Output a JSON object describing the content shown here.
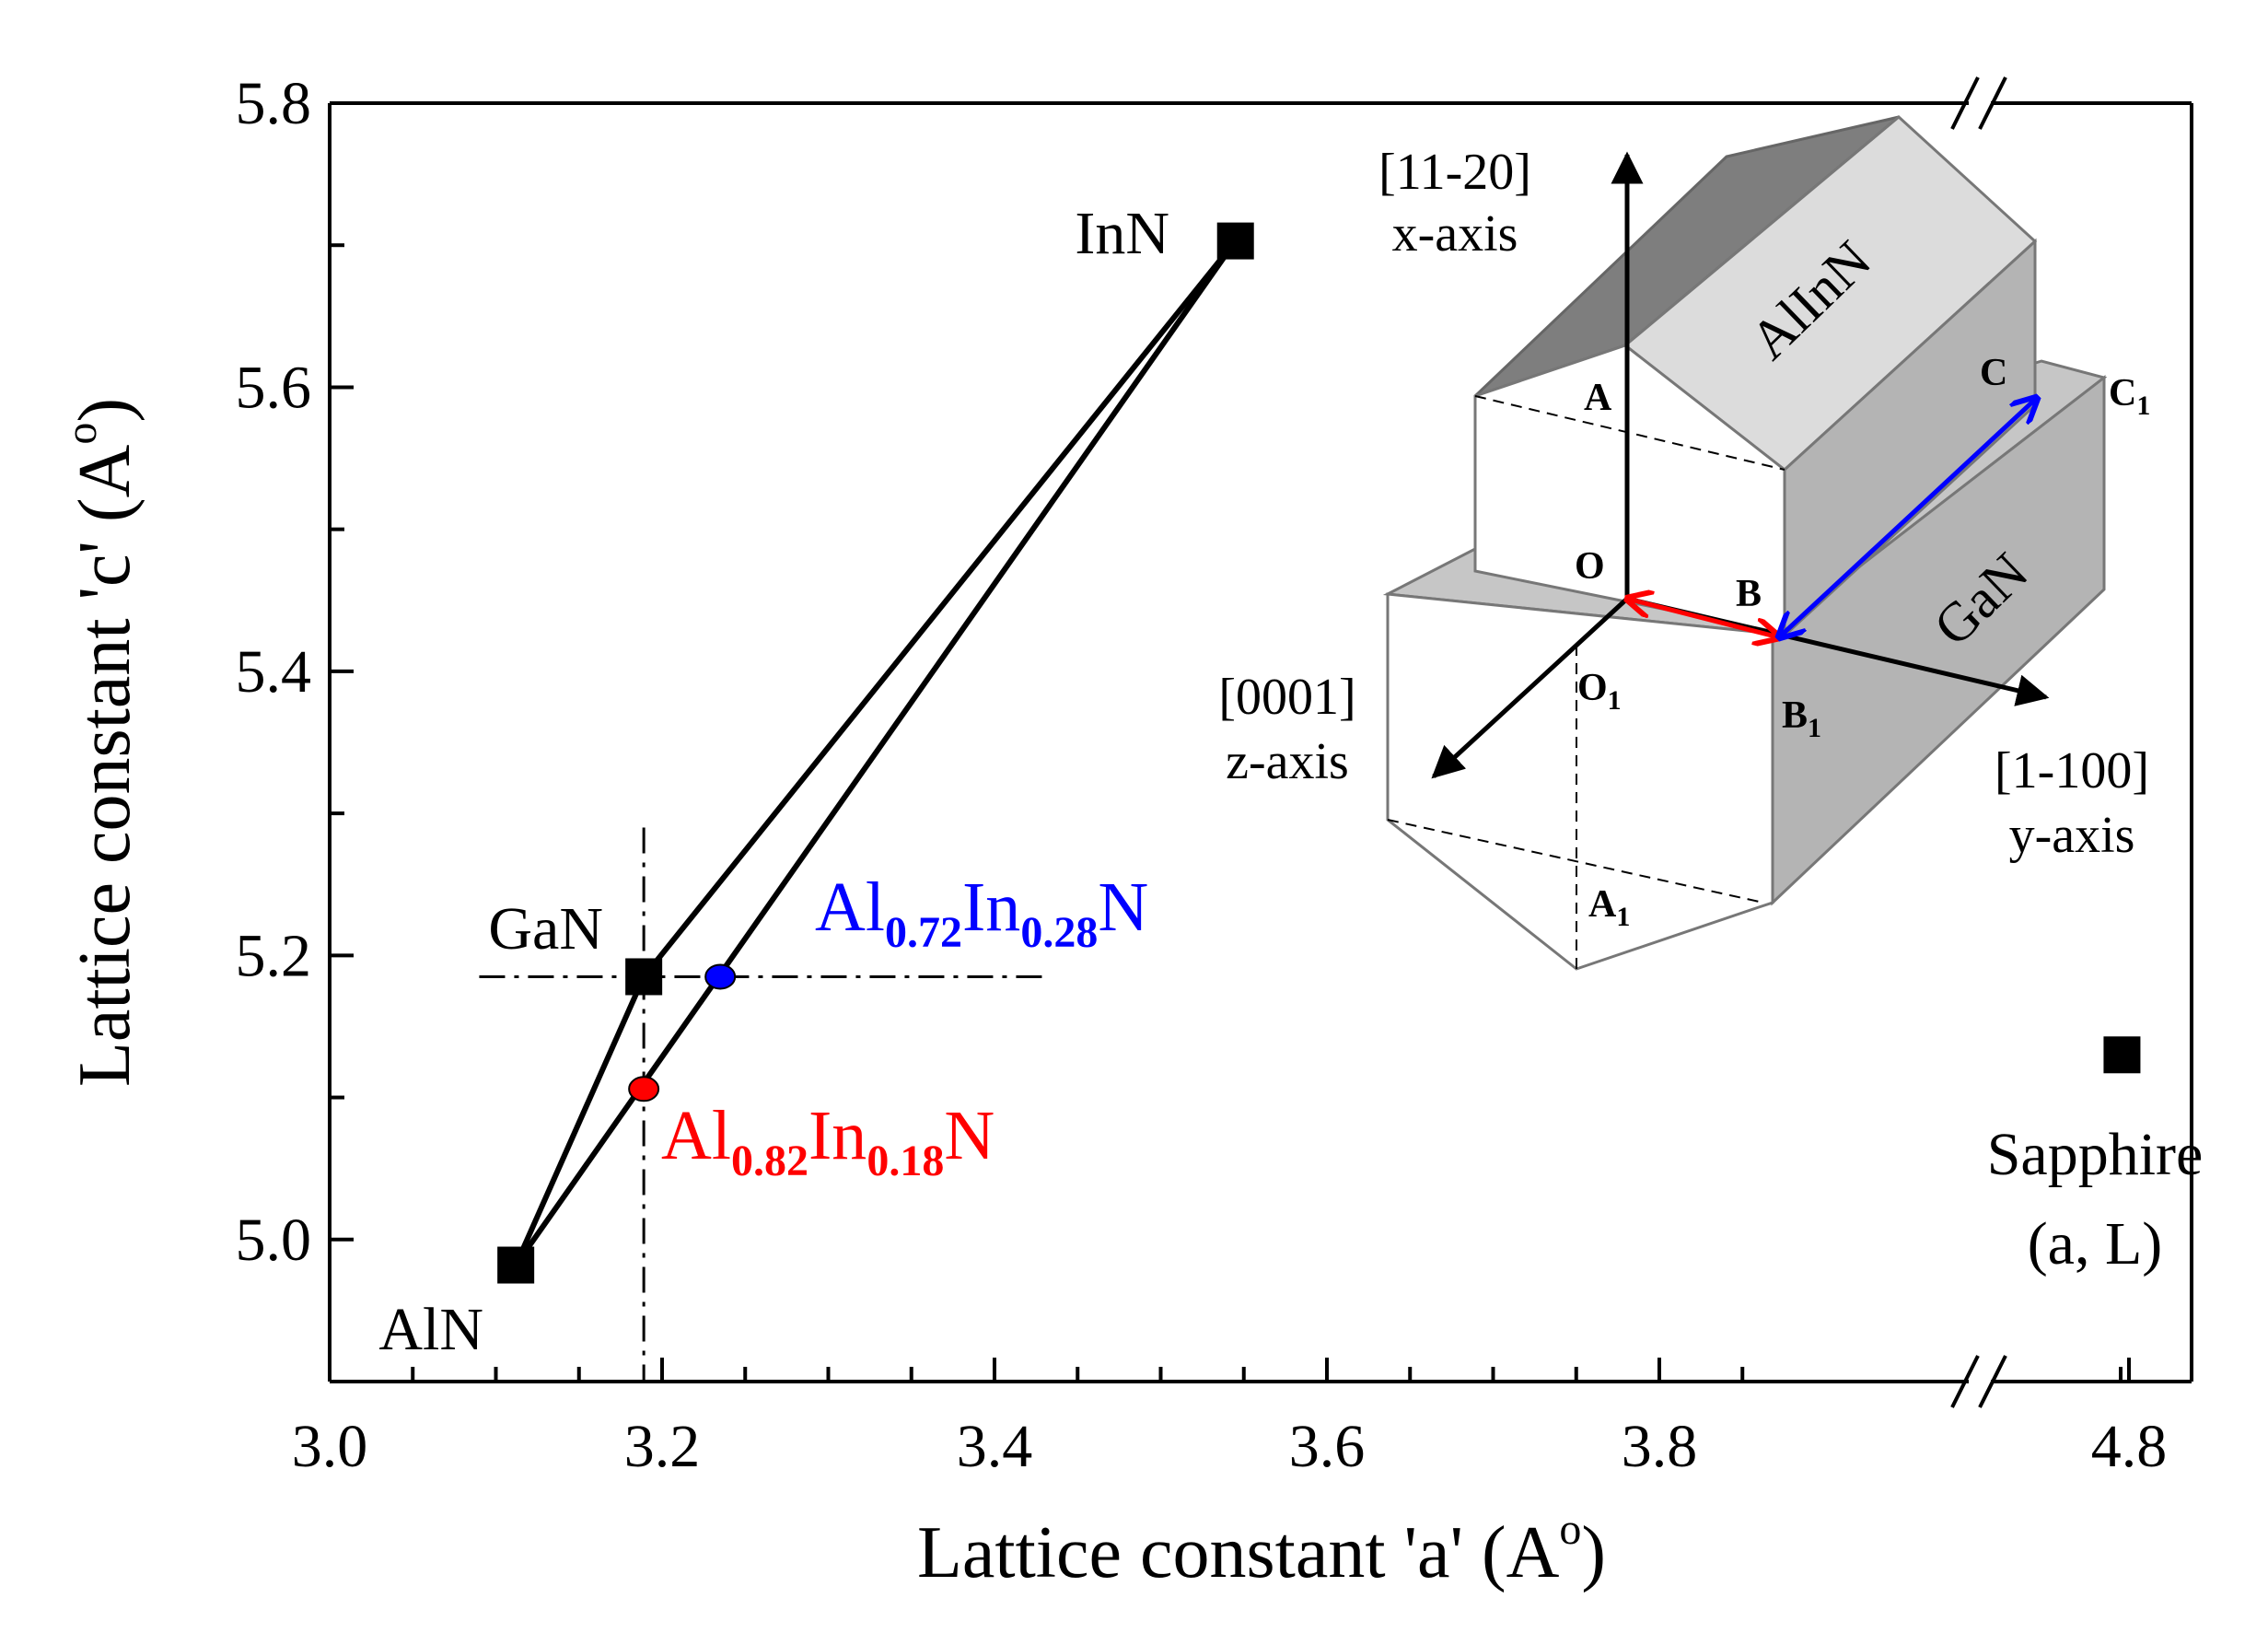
{
  "chart_data": {
    "type": "scatter",
    "xlabel": "Lattice constant 'a'  (A",
    "ylabel": "Lattice constant 'c' (A",
    "unit_superscript": "o",
    "unit_close": ")",
    "xlim": [
      3.0,
      4.8
    ],
    "ylim": [
      4.9,
      5.8
    ],
    "x_break": true,
    "x_ticks": [
      3.0,
      3.2,
      3.4,
      3.6,
      3.8,
      4.8
    ],
    "x_tick_labels": [
      "3.0",
      "3.2",
      "3.4",
      "3.6",
      "3.8",
      "4.8"
    ],
    "y_ticks": [
      5.0,
      5.2,
      5.4,
      5.6,
      5.8
    ],
    "y_tick_labels": [
      "5.0",
      "5.2",
      "5.4",
      "5.6",
      "5.8"
    ],
    "binaries": [
      {
        "label": "AlN",
        "a": 3.112,
        "c": 4.982
      },
      {
        "label": "GaN",
        "a": 3.189,
        "c": 5.185
      },
      {
        "label": "InN",
        "a": 3.545,
        "c": 5.703
      }
    ],
    "sapphire": {
      "label": "Sapphire",
      "label2": "(a, L)",
      "a": 4.758,
      "c": 5.13
    },
    "alloys": [
      {
        "base": "Al",
        "x": "0.72",
        "mid": "In",
        "y": "0.28",
        "end": "N",
        "a": 3.235,
        "c": 5.185,
        "color": "#0000ff"
      },
      {
        "base": "Al",
        "x": "0.82",
        "mid": "In",
        "y": "0.18",
        "end": "N",
        "a": 3.189,
        "c": 5.106,
        "color": "#ff0000"
      }
    ],
    "guide_lines": {
      "vertical_a": 3.189,
      "horizontal_c": 5.185
    },
    "inset": {
      "x_axis": [
        "[11-20]",
        "x-axis"
      ],
      "z_axis": [
        "[0001]",
        "z-axis"
      ],
      "y_axis": [
        "[1-100]",
        "y-axis"
      ],
      "top_material": "AlInN",
      "bottom_material": "GaN",
      "points": {
        "A": "A",
        "O": "O",
        "B": "B",
        "C": "C",
        "O1": "O",
        "B1": "B",
        "A1": "A",
        "C1": "C",
        "sub": "1"
      },
      "red_arrow_color": "#ff0000",
      "blue_arrow_color": "#0000ff"
    }
  }
}
